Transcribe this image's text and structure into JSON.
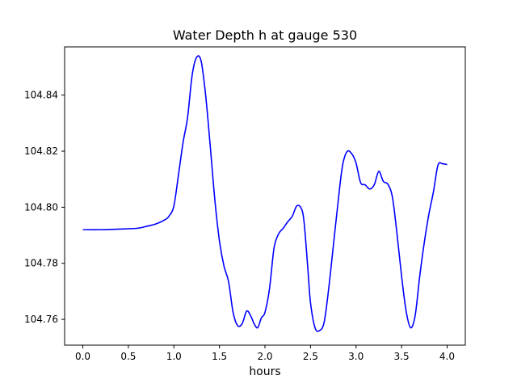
{
  "chart_data": {
    "type": "line",
    "title": "Water Depth h at gauge 530",
    "xlabel": "hours",
    "ylabel": "",
    "xlim": [
      -0.2,
      4.2
    ],
    "ylim": [
      104.7508,
      104.8572
    ],
    "grid": false,
    "xticks": [
      0.0,
      0.5,
      1.0,
      1.5,
      2.0,
      2.5,
      3.0,
      3.5,
      4.0
    ],
    "xtick_labels": [
      "0.0",
      "0.5",
      "1.0",
      "1.5",
      "2.0",
      "2.5",
      "3.0",
      "3.5",
      "4.0"
    ],
    "yticks": [
      104.76,
      104.78,
      104.8,
      104.82,
      104.84
    ],
    "ytick_labels": [
      "104.76",
      "104.78",
      "104.80",
      "104.82",
      "104.84"
    ],
    "series": [
      {
        "color": "#0000ff",
        "x": [
          0.0,
          0.2,
          0.4,
          0.6,
          0.7,
          0.8,
          0.9,
          0.95,
          1.0,
          1.05,
          1.1,
          1.15,
          1.2,
          1.25,
          1.3,
          1.35,
          1.4,
          1.45,
          1.5,
          1.55,
          1.6,
          1.65,
          1.7,
          1.75,
          1.8,
          1.85,
          1.88,
          1.92,
          1.96,
          2.0,
          2.05,
          2.1,
          2.15,
          2.2,
          2.25,
          2.3,
          2.35,
          2.4,
          2.43,
          2.47,
          2.5,
          2.55,
          2.6,
          2.65,
          2.7,
          2.75,
          2.8,
          2.85,
          2.9,
          2.95,
          3.0,
          3.05,
          3.1,
          3.15,
          3.2,
          3.25,
          3.3,
          3.35,
          3.4,
          3.45,
          3.5,
          3.55,
          3.6,
          3.65,
          3.7,
          3.75,
          3.8,
          3.85,
          3.9,
          3.95,
          4.0
        ],
        "y": [
          104.792,
          104.792,
          104.7922,
          104.7925,
          104.7932,
          104.794,
          104.7955,
          104.797,
          104.8005,
          104.8115,
          104.823,
          104.832,
          104.847,
          104.8535,
          104.852,
          104.8395,
          104.8215,
          104.8025,
          104.788,
          104.779,
          104.7735,
          104.7625,
          104.7578,
          104.7585,
          104.763,
          104.7608,
          104.7585,
          104.757,
          104.7605,
          104.7625,
          104.771,
          104.7855,
          104.7905,
          104.7925,
          104.7948,
          104.7968,
          104.8005,
          104.7995,
          104.7945,
          104.7785,
          104.766,
          104.757,
          104.756,
          104.759,
          104.771,
          104.786,
          104.801,
          104.8145,
          104.8198,
          104.8192,
          104.8158,
          104.8088,
          104.808,
          104.8065,
          104.808,
          104.8128,
          104.8092,
          104.8082,
          104.8035,
          104.7905,
          104.7755,
          104.763,
          104.757,
          104.7615,
          104.7755,
          104.7875,
          104.7975,
          104.8055,
          104.815,
          104.8155,
          104.8152
        ]
      }
    ]
  }
}
